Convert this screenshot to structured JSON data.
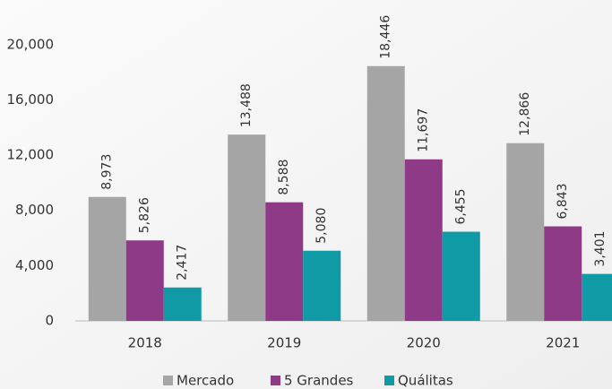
{
  "chart_data": {
    "type": "bar",
    "categories": [
      "2018",
      "2019",
      "2020",
      "2021"
    ],
    "series": [
      {
        "name": "Mercado",
        "color": "#a5a5a5",
        "values": [
          8973,
          13488,
          18446,
          12866
        ],
        "value_labels": [
          "8,973",
          "13,488",
          "18,446",
          "12,866"
        ]
      },
      {
        "name": "5 Grandes",
        "color": "#8e3a86",
        "values": [
          5826,
          8588,
          11697,
          6843
        ],
        "value_labels": [
          "5,826",
          "8,588",
          "11,697",
          "6,843"
        ]
      },
      {
        "name": "Quálitas",
        "color": "#0f9aa6",
        "values": [
          2417,
          5080,
          6455,
          3401
        ],
        "value_labels": [
          "2,417",
          "5,080",
          "6,455",
          "3,401"
        ]
      }
    ],
    "ylim": [
      0,
      22000
    ],
    "yticks": [
      0,
      {
        "value": 4000,
        "label": "4,000"
      },
      {
        "value": 8000,
        "label": "8,000"
      },
      {
        "value": 12000,
        "label": "12,000"
      },
      {
        "value": 16000,
        "label": "16,000"
      },
      {
        "value": 20000,
        "label": "20,000"
      }
    ],
    "grid": false,
    "legend": "bottom"
  }
}
